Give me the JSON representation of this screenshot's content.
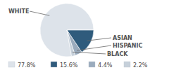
{
  "chart_data": {
    "type": "pie",
    "categories": [
      "WHITE",
      "ASIAN",
      "HISPANIC",
      "BLACK"
    ],
    "values": [
      77.8,
      15.6,
      4.4,
      2.2
    ],
    "value_labels": [
      "77.8%",
      "15.6%",
      "4.4%",
      "2.2%"
    ],
    "colors": [
      "#dde3ea",
      "#2f5b7c",
      "#9aabbd",
      "#c6d0da"
    ],
    "legend": "bottom"
  }
}
